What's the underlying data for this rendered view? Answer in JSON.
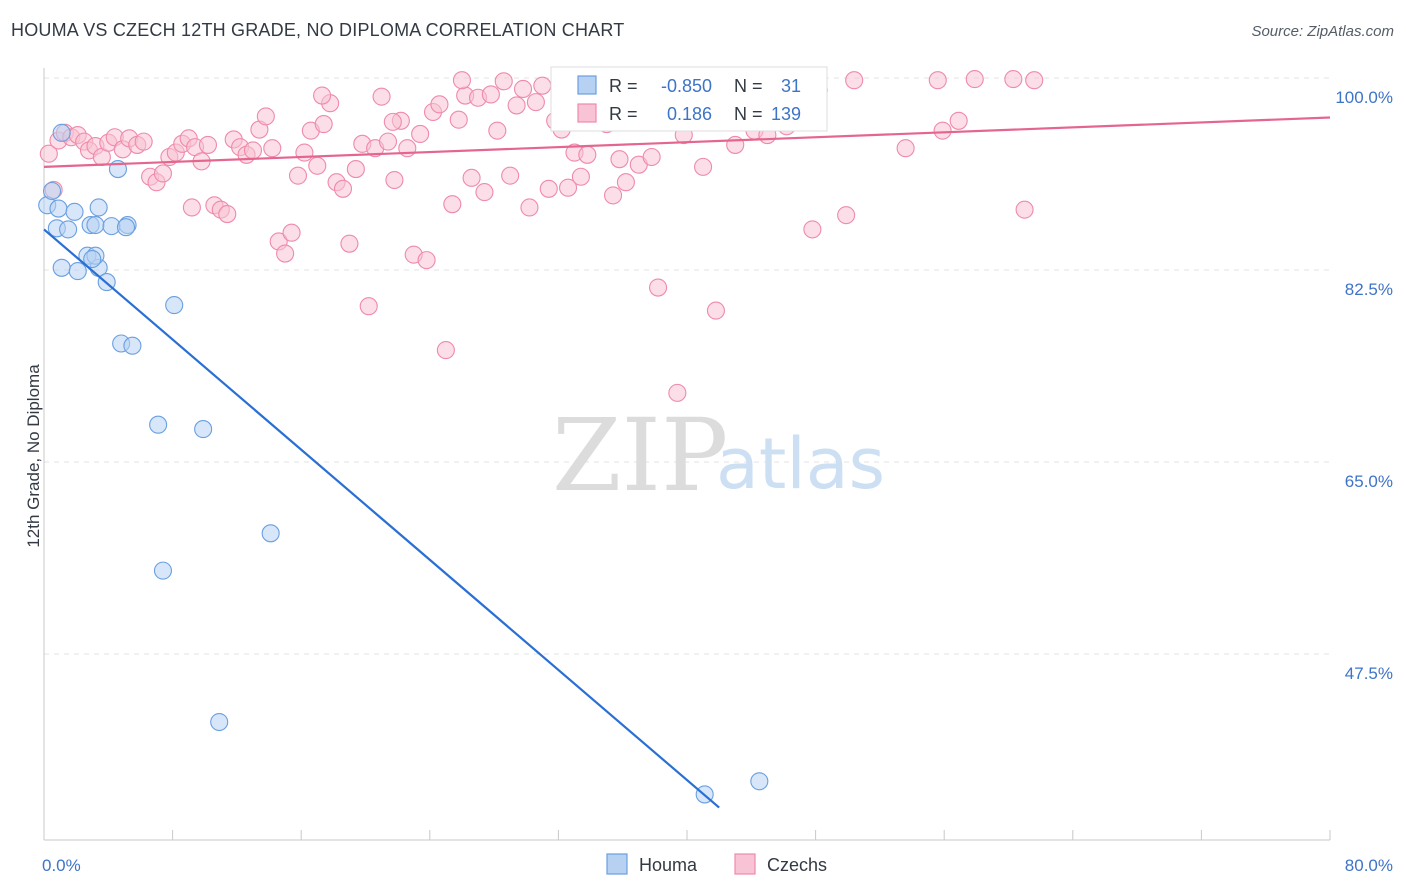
{
  "title": "HOUMA VS CZECH 12TH GRADE, NO DIPLOMA CORRELATION CHART",
  "source": "Source: ZipAtlas.com",
  "watermark": {
    "zip": "ZIP",
    "atlas": "atlas"
  },
  "colors": {
    "houma": "#6a9fe0",
    "houma_fill": "#b7d1f3",
    "houma_line": "#2a6fd4",
    "czechs": "#ef8aaa",
    "czechs_fill": "#f8c3d4",
    "czechs_line": "#e4668f",
    "tick": "#3e74c8",
    "grid": "#e3e3e3"
  },
  "stats": {
    "houma": {
      "r_label": "R =",
      "r_value": "-0.850",
      "n_label": "N =",
      "n_value": "31"
    },
    "czechs": {
      "r_label": "R =",
      "r_value": "0.186",
      "n_label": "N =",
      "n_value": "139"
    }
  },
  "chart_data": {
    "type": "scatter",
    "title": "HOUMA VS CZECH 12TH GRADE, NO DIPLOMA CORRELATION CHART",
    "xlabel": "",
    "ylabel": "12th Grade, No Diploma",
    "xlim": [
      0,
      80
    ],
    "ylim": [
      33.5,
      101.5
    ],
    "x_tick_labels": [
      {
        "value": 0,
        "label": "0.0%"
      },
      {
        "value": 80,
        "label": "80.0%"
      }
    ],
    "y_tick_labels": [
      {
        "value": 100,
        "label": "100.0%"
      },
      {
        "value": 82.5,
        "label": "82.5%"
      },
      {
        "value": 65,
        "label": "65.0%"
      },
      {
        "value": 47.5,
        "label": "47.5%"
      }
    ],
    "grid": true,
    "legend_position": "bottom-center",
    "series": [
      {
        "name": "Houma",
        "color": "#6a9fe0",
        "trend": [
          [
            0,
            86.2
          ],
          [
            42,
            33.5
          ]
        ],
        "points": [
          [
            0.2,
            88.4
          ],
          [
            0.5,
            89.7
          ],
          [
            0.9,
            88.1
          ],
          [
            0.8,
            86.3
          ],
          [
            1.1,
            95.0
          ],
          [
            1.5,
            86.2
          ],
          [
            1.9,
            87.8
          ],
          [
            3.4,
            88.2
          ],
          [
            2.9,
            86.6
          ],
          [
            3.2,
            86.6
          ],
          [
            4.2,
            86.5
          ],
          [
            5.2,
            86.6
          ],
          [
            1.1,
            82.7
          ],
          [
            2.7,
            83.8
          ],
          [
            3.4,
            82.7
          ],
          [
            2.1,
            82.4
          ],
          [
            3.2,
            83.8
          ],
          [
            3.9,
            81.4
          ],
          [
            4.6,
            91.7
          ],
          [
            8.1,
            79.3
          ],
          [
            4.8,
            75.8
          ],
          [
            5.5,
            75.6
          ],
          [
            7.1,
            68.4
          ],
          [
            9.9,
            68.0
          ],
          [
            14.1,
            58.5
          ],
          [
            7.4,
            55.1
          ],
          [
            10.9,
            41.3
          ],
          [
            41.1,
            34.7
          ],
          [
            44.5,
            35.9
          ],
          [
            3.0,
            83.5
          ],
          [
            5.1,
            86.4
          ]
        ]
      },
      {
        "name": "Czechs",
        "color": "#ef8aaa",
        "trend": [
          [
            0,
            91.9
          ],
          [
            80,
            96.4
          ]
        ],
        "points": [
          [
            0.3,
            93.1
          ],
          [
            0.6,
            89.8
          ],
          [
            0.9,
            94.3
          ],
          [
            1.3,
            95.0
          ],
          [
            1.7,
            94.6
          ],
          [
            2.1,
            94.8
          ],
          [
            2.5,
            94.2
          ],
          [
            2.8,
            93.4
          ],
          [
            3.2,
            93.8
          ],
          [
            3.6,
            92.8
          ],
          [
            4.0,
            94.1
          ],
          [
            4.4,
            94.6
          ],
          [
            4.9,
            93.5
          ],
          [
            5.3,
            94.5
          ],
          [
            5.8,
            93.9
          ],
          [
            6.2,
            94.2
          ],
          [
            6.6,
            91.0
          ],
          [
            7.0,
            90.5
          ],
          [
            7.4,
            91.3
          ],
          [
            7.8,
            92.8
          ],
          [
            8.2,
            93.2
          ],
          [
            8.6,
            94.0
          ],
          [
            9.0,
            94.5
          ],
          [
            9.4,
            93.7
          ],
          [
            9.8,
            92.4
          ],
          [
            10.2,
            93.9
          ],
          [
            10.6,
            88.4
          ],
          [
            11.0,
            88.0
          ],
          [
            11.4,
            87.6
          ],
          [
            11.8,
            94.4
          ],
          [
            12.2,
            93.7
          ],
          [
            12.6,
            93.0
          ],
          [
            13.0,
            93.4
          ],
          [
            13.4,
            95.3
          ],
          [
            13.8,
            96.5
          ],
          [
            14.2,
            93.6
          ],
          [
            14.6,
            85.1
          ],
          [
            15.0,
            84.0
          ],
          [
            15.4,
            85.9
          ],
          [
            15.8,
            91.1
          ],
          [
            16.2,
            93.2
          ],
          [
            16.6,
            95.2
          ],
          [
            17.0,
            92.0
          ],
          [
            17.4,
            95.8
          ],
          [
            17.8,
            97.7
          ],
          [
            18.2,
            90.5
          ],
          [
            18.6,
            89.9
          ],
          [
            19.0,
            84.9
          ],
          [
            19.4,
            91.7
          ],
          [
            19.8,
            94.0
          ],
          [
            20.2,
            79.2
          ],
          [
            20.6,
            93.6
          ],
          [
            21.0,
            98.3
          ],
          [
            21.4,
            94.2
          ],
          [
            21.8,
            90.7
          ],
          [
            22.2,
            96.1
          ],
          [
            22.6,
            93.6
          ],
          [
            23.0,
            83.9
          ],
          [
            23.4,
            94.9
          ],
          [
            23.8,
            83.4
          ],
          [
            24.2,
            96.9
          ],
          [
            24.6,
            97.6
          ],
          [
            25.0,
            75.2
          ],
          [
            25.4,
            88.5
          ],
          [
            25.8,
            96.2
          ],
          [
            26.2,
            98.4
          ],
          [
            26.6,
            90.9
          ],
          [
            27.0,
            98.2
          ],
          [
            27.4,
            89.6
          ],
          [
            27.8,
            98.5
          ],
          [
            28.2,
            95.2
          ],
          [
            28.6,
            99.7
          ],
          [
            29.0,
            91.1
          ],
          [
            29.4,
            97.5
          ],
          [
            29.8,
            99.0
          ],
          [
            30.2,
            88.2
          ],
          [
            30.6,
            97.8
          ],
          [
            31.0,
            99.3
          ],
          [
            31.4,
            89.9
          ],
          [
            31.8,
            96.1
          ],
          [
            32.2,
            95.3
          ],
          [
            32.6,
            90.0
          ],
          [
            33.0,
            93.2
          ],
          [
            33.4,
            91.0
          ],
          [
            33.8,
            93.0
          ],
          [
            34.2,
            98.1
          ],
          [
            34.6,
            96.1
          ],
          [
            35.0,
            95.8
          ],
          [
            35.4,
            89.3
          ],
          [
            35.8,
            92.6
          ],
          [
            36.2,
            90.5
          ],
          [
            36.6,
            98.6
          ],
          [
            37.0,
            92.1
          ],
          [
            37.4,
            99.2
          ],
          [
            37.8,
            92.8
          ],
          [
            38.2,
            80.9
          ],
          [
            38.6,
            98.2
          ],
          [
            39.0,
            96.3
          ],
          [
            39.4,
            71.3
          ],
          [
            39.8,
            94.8
          ],
          [
            40.2,
            97.4
          ],
          [
            40.6,
            99.6
          ],
          [
            41.0,
            91.9
          ],
          [
            41.4,
            98.8
          ],
          [
            41.8,
            78.8
          ],
          [
            42.2,
            97.9
          ],
          [
            42.6,
            99.1
          ],
          [
            43.0,
            93.9
          ],
          [
            43.4,
            96.9
          ],
          [
            43.8,
            99.6
          ],
          [
            44.2,
            95.2
          ],
          [
            44.6,
            99.8
          ],
          [
            45.0,
            94.8
          ],
          [
            45.4,
            96.5
          ],
          [
            45.8,
            99.0
          ],
          [
            46.2,
            95.6
          ],
          [
            46.6,
            96.1
          ],
          [
            47.0,
            98.5
          ],
          [
            47.4,
            97.7
          ],
          [
            47.8,
            86.2
          ],
          [
            48.2,
            98.9
          ],
          [
            49.9,
            87.5
          ],
          [
            50.4,
            99.8
          ],
          [
            53.6,
            93.6
          ],
          [
            55.6,
            99.8
          ],
          [
            55.9,
            95.2
          ],
          [
            56.9,
            96.1
          ],
          [
            57.9,
            99.9
          ],
          [
            60.3,
            99.9
          ],
          [
            61.0,
            88.0
          ],
          [
            61.6,
            99.8
          ],
          [
            38.0,
            99.2
          ],
          [
            36.4,
            98.2
          ],
          [
            34.8,
            99.0
          ],
          [
            9.2,
            88.2
          ],
          [
            17.3,
            98.4
          ],
          [
            26.0,
            99.8
          ],
          [
            21.7,
            96.0
          ],
          [
            44.3,
            99.5
          ]
        ]
      }
    ]
  },
  "legend": [
    {
      "key": "houma",
      "label": "Houma"
    },
    {
      "key": "czechs",
      "label": "Czechs"
    }
  ]
}
